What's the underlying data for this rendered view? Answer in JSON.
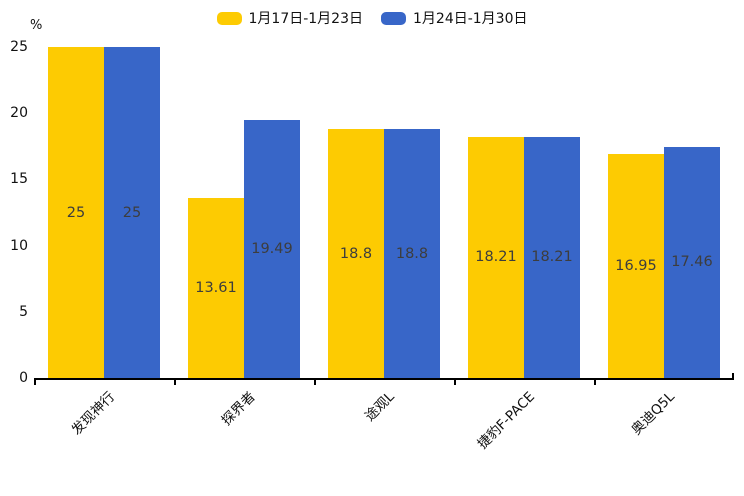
{
  "chart_data": {
    "type": "bar",
    "title": "",
    "xlabel": "",
    "ylabel": "%",
    "ylim": [
      0,
      25
    ],
    "yticks": [
      0,
      5,
      10,
      15,
      20,
      25
    ],
    "grid": false,
    "legend_position": "top-center",
    "categories": [
      "发现神行",
      "探界者",
      "途观L",
      "捷豹F-PACE",
      "奥迪Q5L"
    ],
    "series": [
      {
        "name": "1月17日-1月23日",
        "color": "#FDCB02",
        "values": [
          25,
          13.61,
          18.8,
          18.21,
          16.95
        ]
      },
      {
        "name": "1月24日-1月30日",
        "color": "#3866C8",
        "values": [
          25,
          19.49,
          18.8,
          18.21,
          17.46
        ]
      }
    ],
    "value_label_color": "#3d3d3d",
    "axis_color": "#000000"
  }
}
